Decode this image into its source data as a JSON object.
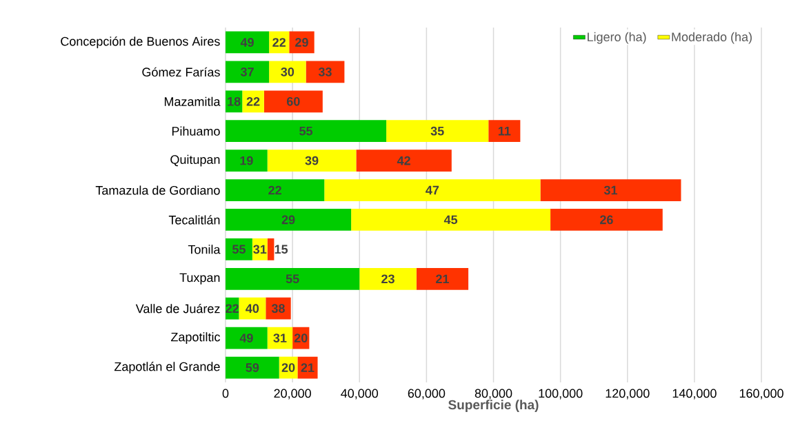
{
  "chart_data": {
    "type": "bar",
    "orientation": "horizontal",
    "stacked": true,
    "categories": [
      "Concepción de Buenos Aires",
      "Gómez Farías",
      "Mazamitla",
      "Pihuamo",
      "Quitupan",
      "Tamazula de Gordiano",
      "Tecalitlán",
      "Tonila",
      "Tuxpan",
      "Valle de Juárez",
      "Zapotiltic",
      "Zapotlán el Grande"
    ],
    "series": [
      {
        "name": "Ligero (ha)",
        "color": "#00cc00",
        "values": [
          13000,
          13000,
          5000,
          48000,
          12500,
          29500,
          37500,
          8000,
          40000,
          4000,
          12500,
          16000
        ]
      },
      {
        "name": "Moderado (ha)",
        "color": "#ffff00",
        "values": [
          6000,
          11000,
          6500,
          30500,
          26500,
          64500,
          59500,
          4500,
          17000,
          8000,
          7500,
          5500
        ]
      },
      {
        "color": "#ff3300",
        "values": [
          7500,
          11500,
          17500,
          9500,
          28500,
          42000,
          33500,
          2000,
          15500,
          7500,
          5000,
          6000
        ]
      }
    ],
    "annotations": [
      {
        "text": "49",
        "x": 6500,
        "y": "Concepción de Buenos Aires"
      },
      {
        "text": "22",
        "x": 16000,
        "y": "Concepción de Buenos Aires"
      },
      {
        "text": "29",
        "x": 22750,
        "y": "Concepción de Buenos Aires"
      },
      {
        "text": "37",
        "x": 6500,
        "y": "Gómez Farías"
      },
      {
        "text": "30",
        "x": 18500,
        "y": "Gómez Farías"
      },
      {
        "text": "33",
        "x": 29750,
        "y": "Gómez Farías"
      },
      {
        "text": "18",
        "x": 2500,
        "y": "Mazamitla"
      },
      {
        "text": "22",
        "x": 8250,
        "y": "Mazamitla"
      },
      {
        "text": "60",
        "x": 20250,
        "y": "Mazamitla"
      },
      {
        "text": "55",
        "x": 24000,
        "y": "Pihuamo"
      },
      {
        "text": "35",
        "x": 63250,
        "y": "Pihuamo"
      },
      {
        "text": "11",
        "x": 83250,
        "y": "Pihuamo"
      },
      {
        "text": "19",
        "x": 6250,
        "y": "Quitupan"
      },
      {
        "text": "39",
        "x": 25750,
        "y": "Quitupan"
      },
      {
        "text": "42",
        "x": 53250,
        "y": "Quitupan"
      },
      {
        "text": "22",
        "x": 14750,
        "y": "Tamazula de Gordiano"
      },
      {
        "text": "47",
        "x": 61750,
        "y": "Tamazula de Gordiano"
      },
      {
        "text": "31",
        "x": 115000,
        "y": "Tamazula de Gordiano"
      },
      {
        "text": "29",
        "x": 18750,
        "y": "Tecalitlán"
      },
      {
        "text": "45",
        "x": 67250,
        "y": "Tecalitlán"
      },
      {
        "text": "26",
        "x": 113750,
        "y": "Tecalitlán"
      },
      {
        "text": "55",
        "x": 4000,
        "y": "Tonila"
      },
      {
        "text": "31",
        "x": 10250,
        "y": "Tonila"
      },
      {
        "text": "15",
        "x": 14500,
        "y": "Tonila"
      },
      {
        "text": "55",
        "x": 20000,
        "y": "Tuxpan"
      },
      {
        "text": "23",
        "x": 48500,
        "y": "Tuxpan"
      },
      {
        "text": "21",
        "x": 64750,
        "y": "Tuxpan"
      },
      {
        "text": "22",
        "x": 2000,
        "y": "Valle de Juárez"
      },
      {
        "text": "40",
        "x": 8000,
        "y": "Valle de Juárez"
      },
      {
        "text": "38",
        "x": 15750,
        "y": "Valle de Juárez"
      },
      {
        "text": "49",
        "x": 6250,
        "y": "Zapotiltic"
      },
      {
        "text": "31",
        "x": 16250,
        "y": "Zapotiltic"
      },
      {
        "text": "20",
        "x": 22500,
        "y": "Zapotiltic"
      },
      {
        "text": "59",
        "x": 8000,
        "y": "Zapotlán el Grande"
      },
      {
        "text": "20",
        "x": 18750,
        "y": "Zapotlán el Grande"
      },
      {
        "text": "21",
        "x": 24500,
        "y": "Zapotlán el Grande"
      }
    ],
    "xlabel": "Superficie (ha)",
    "xlim": [
      0,
      160000
    ],
    "xticks": [
      0,
      {
        "value": 20000,
        "label": "20,000"
      },
      {
        "value": 40000,
        "label": "40,000"
      },
      {
        "value": 60000,
        "label": "60,000"
      },
      {
        "value": 80000,
        "label": "80,000"
      },
      {
        "value": 100000,
        "label": "100,000"
      },
      {
        "value": 120000,
        "label": "120,000"
      },
      {
        "value": 140000,
        "label": "140,000"
      },
      {
        "value": 160000,
        "label": "160,000"
      }
    ],
    "grid": "x",
    "legend": "top right"
  }
}
